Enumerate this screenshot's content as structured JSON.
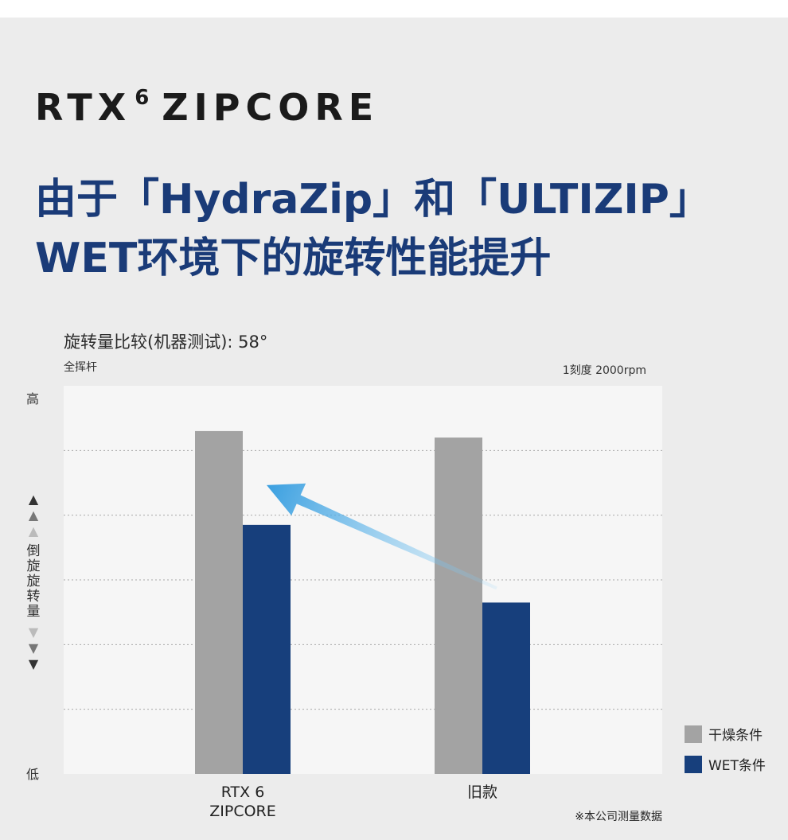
{
  "brand": {
    "name": "RTX",
    "sup": "6",
    "suffix": "ZIPCORE"
  },
  "headline": {
    "line1": "由于「HydraZip」和「ULTIZIP」",
    "line2": "WET环境下的旋转性能提升"
  },
  "chart_meta": {
    "subtitle": "全挥杆",
    "scale_note": "1刻度 2000rpm",
    "y_high": "高",
    "y_low": "低",
    "y_axis_label": "倒旋旋转量",
    "footnote": "※本公司测量数据"
  },
  "chart_data": {
    "type": "bar",
    "title": "旋转量比较(机器测试): 58°",
    "categories": [
      "RTX 6\nZIPCORE",
      "旧款"
    ],
    "series": [
      {
        "name": "干燥条件",
        "color": "#a3a3a3",
        "values": [
          5.3,
          5.2
        ]
      },
      {
        "name": "WET条件",
        "color": "#173f7c",
        "values": [
          3.85,
          2.65
        ]
      }
    ],
    "ylim": [
      0,
      6
    ],
    "grid": true,
    "legend_position": "bottom-right",
    "y_tick_labels": [
      "低",
      "高"
    ],
    "annotation": "arrow from 旧款 WET bar toward RTX 6 ZIPCORE WET bar"
  }
}
